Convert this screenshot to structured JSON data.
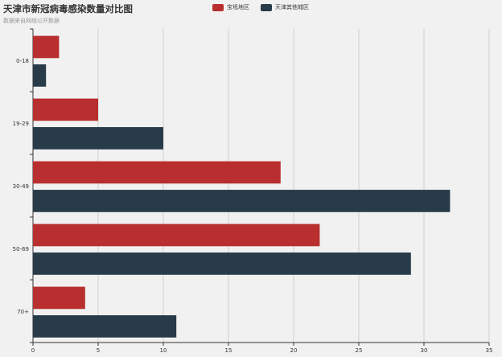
{
  "chart_data": {
    "type": "bar",
    "orientation": "horizontal",
    "title": "天津市新冠病毒感染数量对比图",
    "subtitle": "数据来自网络公开数据",
    "categories": [
      "0-18",
      "19-29",
      "30-49",
      "50-69",
      "70+"
    ],
    "series": [
      {
        "name": "宝坻地区",
        "color": "#b92e2e",
        "values": [
          2,
          5,
          19,
          22,
          4
        ]
      },
      {
        "name": "天津其他城区",
        "color": "#283b49",
        "values": [
          1,
          10,
          32,
          29,
          11
        ]
      }
    ],
    "xlim": [
      0,
      35
    ],
    "xticks": [
      0,
      5,
      10,
      15,
      20,
      25,
      30,
      35
    ],
    "grid": true,
    "legend_position": "top-center"
  }
}
